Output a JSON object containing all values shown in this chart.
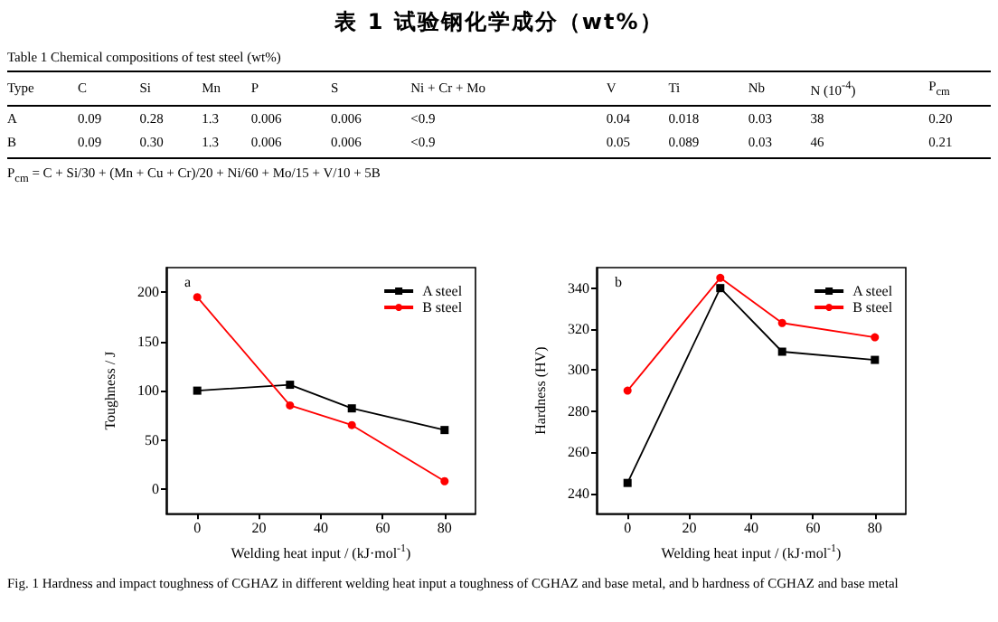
{
  "chart_data": [
    {
      "type": "other",
      "title": "表 1 试验钢化学成分（wt%）",
      "subtitle": "Table 1 Chemical compositions of test steel (wt%)",
      "ylabel": "Type",
      "categories": [
        "C",
        "Si",
        "Mn",
        "P",
        "S",
        "Ni + Cr + Mo",
        "V",
        "Ti",
        "Nb",
        "N (10$^{-4}$)",
        "P$_{cm}$"
      ],
      "y_categories": [
        "A",
        "B"
      ],
      "cell_labels": [
        [
          "0.09",
          "0.28",
          "1.3",
          "0.006",
          "0.006",
          "<0.9",
          "0.04",
          "0.018",
          "0.03",
          "38",
          "0.20"
        ],
        [
          "0.09",
          "0.30",
          "1.3",
          "0.006",
          "0.006",
          "<0.9",
          "0.05",
          "0.089",
          "0.03",
          "46",
          "0.21"
        ]
      ],
      "annotations": [
        "P$_{cm}$ = C + Si/30 + (Mn + Cu + Cr)/20 + Ni/60 + Mo/15 + V/10 + 5B"
      ]
    },
    {
      "type": "line",
      "xlabel": "Welding heat input / (kJ·mol$^{-1}$)",
      "ylabel": "Toughness / J",
      "x": [
        0,
        30,
        50,
        80
      ],
      "series": [
        {
          "name": "A steel",
          "color": "#000000",
          "marker": "square",
          "values": [
            100,
            106,
            82,
            60
          ]
        },
        {
          "name": "B steel",
          "color": "#ff0000",
          "marker": "circle",
          "values": [
            195,
            85,
            65,
            8
          ]
        }
      ],
      "xlim": [
        -10,
        90
      ],
      "xticks": [
        0,
        20,
        40,
        60,
        80
      ],
      "ylim": [
        -25,
        225
      ],
      "yticks": [
        0,
        50,
        100,
        150,
        200
      ],
      "grid": false,
      "legend": "top right",
      "annotations": [
        "a"
      ]
    },
    {
      "type": "line",
      "xlabel": "Welding heat input / (kJ·mol$^{-1}$)",
      "ylabel": "Hardness (HV)",
      "x": [
        0,
        30,
        50,
        80
      ],
      "series": [
        {
          "name": "A steel",
          "color": "#000000",
          "marker": "square",
          "values": [
            245,
            340,
            309,
            305
          ]
        },
        {
          "name": "B steel",
          "color": "#ff0000",
          "marker": "circle",
          "values": [
            290,
            345,
            323,
            316
          ]
        }
      ],
      "xlim": [
        -10,
        90
      ],
      "xticks": [
        0,
        20,
        40,
        60,
        80
      ],
      "ylim": [
        230,
        350
      ],
      "yticks": [
        240,
        260,
        280,
        300,
        320,
        340
      ],
      "grid": false,
      "legend": "top right",
      "annotations": [
        "b",
        "Fig. 1 Hardness and impact toughness of CGHAZ in different welding heat input a toughness of CGHAZ and base metal, and b hardness of CGHAZ and base metal"
      ]
    }
  ]
}
